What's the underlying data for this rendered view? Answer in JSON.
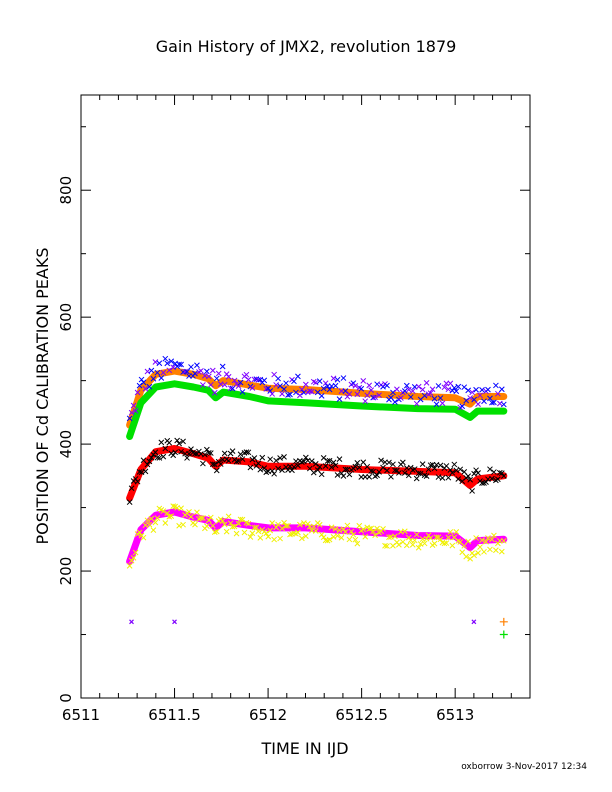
{
  "chart_data": {
    "type": "scatter",
    "title": "Gain History of JMX2, revolution 1879",
    "xlabel": "TIME IN IJD",
    "ylabel": "POSITION OF Cd CALIBRATION PEAKS",
    "credit": "oxborrow  3-Nov-2017 12:34",
    "xlim": [
      6511,
      6513.4
    ],
    "ylim": [
      0,
      950
    ],
    "xticks": [
      {
        "v": 6511,
        "label": "6511"
      },
      {
        "v": 6511.5,
        "label": "6511.5"
      },
      {
        "v": 6512,
        "label": "6512"
      },
      {
        "v": 6512.5,
        "label": "6512.5"
      },
      {
        "v": 6513,
        "label": "6513"
      }
    ],
    "yticks": [
      {
        "v": 0,
        "label": "0"
      },
      {
        "v": 200,
        "label": "200"
      },
      {
        "v": 400,
        "label": "400"
      },
      {
        "v": 600,
        "label": "600"
      },
      {
        "v": 800,
        "label": "800"
      }
    ],
    "grid": false,
    "legend": "none",
    "colors": {
      "orange": "#ff8000",
      "purple": "#7f00ff",
      "green": "#00e000",
      "blue": "#0000ff",
      "red": "#ff0000",
      "black": "#000000",
      "magenta": "#ff00ff",
      "yellow": "#f0f000"
    },
    "x_start": 6511.26,
    "x_end": 6513.26,
    "fit_series": [
      {
        "key": "upper",
        "color": "orange",
        "points": [
          [
            6511.26,
            430
          ],
          [
            6511.32,
            485
          ],
          [
            6511.4,
            510
          ],
          [
            6511.5,
            515
          ],
          [
            6511.6,
            510
          ],
          [
            6511.68,
            503
          ],
          [
            6511.72,
            492
          ],
          [
            6511.76,
            500
          ],
          [
            6511.9,
            493
          ],
          [
            6512.0,
            488
          ],
          [
            6512.2,
            486
          ],
          [
            6512.5,
            480
          ],
          [
            6512.8,
            475
          ],
          [
            6513.0,
            473
          ],
          [
            6513.08,
            463
          ],
          [
            6513.12,
            475
          ],
          [
            6513.26,
            475
          ]
        ]
      },
      {
        "key": "second",
        "color": "green",
        "points": [
          [
            6511.26,
            412
          ],
          [
            6511.32,
            465
          ],
          [
            6511.4,
            490
          ],
          [
            6511.5,
            495
          ],
          [
            6511.6,
            490
          ],
          [
            6511.68,
            485
          ],
          [
            6511.72,
            473
          ],
          [
            6511.76,
            482
          ],
          [
            6511.9,
            475
          ],
          [
            6512.0,
            468
          ],
          [
            6512.2,
            465
          ],
          [
            6512.5,
            460
          ],
          [
            6512.8,
            456
          ],
          [
            6513.0,
            455
          ],
          [
            6513.08,
            442
          ],
          [
            6513.12,
            452
          ],
          [
            6513.26,
            452
          ]
        ]
      },
      {
        "key": "third",
        "color": "red",
        "points": [
          [
            6511.26,
            315
          ],
          [
            6511.32,
            360
          ],
          [
            6511.4,
            388
          ],
          [
            6511.5,
            393
          ],
          [
            6511.6,
            385
          ],
          [
            6511.68,
            378
          ],
          [
            6511.72,
            365
          ],
          [
            6511.76,
            375
          ],
          [
            6511.9,
            372
          ],
          [
            6512.0,
            365
          ],
          [
            6512.2,
            365
          ],
          [
            6512.5,
            360
          ],
          [
            6512.8,
            357
          ],
          [
            6513.0,
            355
          ],
          [
            6513.08,
            335
          ],
          [
            6513.12,
            345
          ],
          [
            6513.26,
            350
          ]
        ]
      },
      {
        "key": "fourth",
        "color": "magenta",
        "points": [
          [
            6511.26,
            215
          ],
          [
            6511.32,
            265
          ],
          [
            6511.4,
            288
          ],
          [
            6511.5,
            293
          ],
          [
            6511.6,
            285
          ],
          [
            6511.68,
            280
          ],
          [
            6511.72,
            268
          ],
          [
            6511.76,
            278
          ],
          [
            6511.9,
            272
          ],
          [
            6512.0,
            268
          ],
          [
            6512.2,
            268
          ],
          [
            6512.5,
            262
          ],
          [
            6512.8,
            256
          ],
          [
            6513.0,
            255
          ],
          [
            6513.08,
            237
          ],
          [
            6513.12,
            248
          ],
          [
            6513.26,
            250
          ]
        ]
      }
    ],
    "scatter_series": [
      {
        "key": "upper-raw",
        "color": "purple",
        "alt_color": "blue",
        "follows": "upper",
        "offset": 5,
        "spread": 18
      },
      {
        "key": "third-raw",
        "color": "black",
        "follows": "third",
        "offset": 2,
        "spread": 14
      },
      {
        "key": "fourth-raw",
        "color": "yellow",
        "follows": "fourth",
        "offset": -5,
        "spread": 15
      }
    ],
    "outliers": [
      {
        "x": 6511.27,
        "y": 120,
        "color": "purple",
        "marker": "x"
      },
      {
        "x": 6511.5,
        "y": 120,
        "color": "purple",
        "marker": "x"
      },
      {
        "x": 6513.1,
        "y": 120,
        "color": "purple",
        "marker": "x"
      },
      {
        "x": 6513.26,
        "y": 120,
        "color": "orange",
        "marker": "+"
      },
      {
        "x": 6513.26,
        "y": 100,
        "color": "green",
        "marker": "+"
      }
    ]
  }
}
